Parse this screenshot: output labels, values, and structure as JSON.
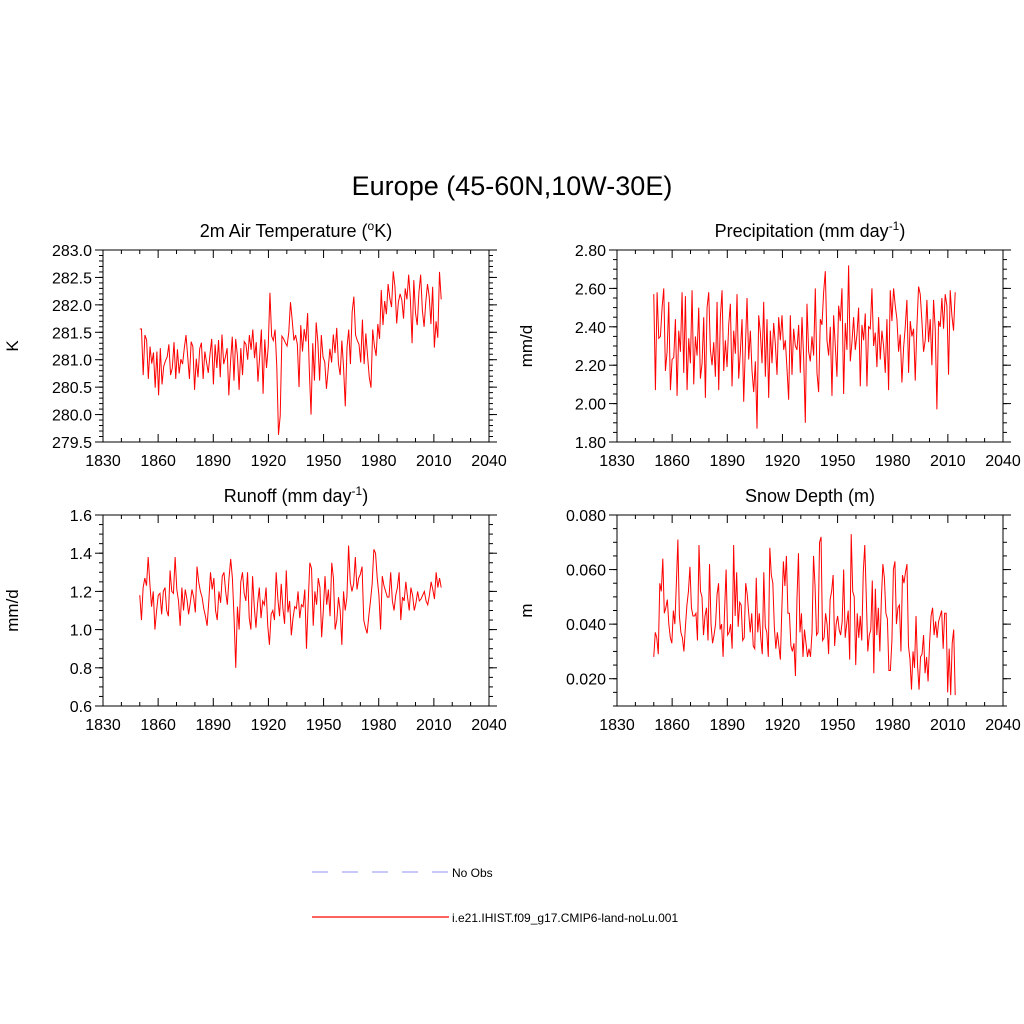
{
  "figure_title": "Europe (45-60N,10W-30E)",
  "legend": [
    {
      "label": "No Obs",
      "color": "#a9a9f5",
      "dash": true
    },
    {
      "label": "i.e21.IHIST.f09_g17.CMIP6-land-noLu.001",
      "color": "#ff0000",
      "dash": false
    }
  ],
  "chart_data": [
    {
      "type": "line",
      "title": "2m Air Temperature (",
      "title_sup": "o",
      "title_after": "K)",
      "ylabel": "K",
      "xlim": [
        1830,
        2040
      ],
      "ylim": [
        279.5,
        283.0
      ],
      "xticks": [
        1830,
        1860,
        1890,
        1920,
        1950,
        1980,
        2010,
        2040
      ],
      "xtick_labels": [
        "1830",
        "1860",
        "1890",
        "1920",
        "1950",
        "1980",
        "2010",
        "2040"
      ],
      "yticks": [
        279.5,
        280.0,
        280.5,
        281.0,
        281.5,
        282.0,
        282.5,
        283.0
      ],
      "ytick_labels": [
        "279.5",
        "280.0",
        "280.5",
        "281.0",
        "281.5",
        "282.0",
        "282.5",
        "283.0"
      ],
      "yminor_step": 0.1,
      "x_start": 1850,
      "color": "#ff0000",
      "values": [
        281.56,
        281.56,
        280.72,
        281.45,
        281.36,
        280.65,
        281.24,
        280.93,
        281.13,
        280.49,
        281.15,
        280.35,
        281.21,
        280.55,
        280.88,
        280.98,
        281.05,
        281.28,
        280.72,
        280.85,
        281.32,
        280.65,
        281.19,
        280.75,
        281.01,
        280.92,
        281.21,
        281.45,
        281.05,
        280.65,
        281.33,
        281.24,
        280.45,
        281.02,
        280.68,
        281.2,
        281.31,
        280.65,
        281.15,
        280.95,
        280.76,
        281.1,
        281.38,
        280.55,
        281.28,
        280.85,
        281.36,
        280.68,
        281.46,
        280.92,
        281.05,
        281.21,
        280.35,
        280.96,
        281.42,
        280.62,
        281.38,
        281.08,
        280.45,
        281.21,
        280.72,
        281.33,
        281.28,
        281.0,
        281.45,
        281.18,
        281.55,
        281.03,
        281.32,
        280.6,
        281.06,
        281.55,
        280.38,
        281.37,
        280.85,
        281.23,
        282.22,
        281.43,
        281.35,
        281.55,
        280.88,
        279.63,
        279.98,
        281.43,
        281.38,
        281.31,
        281.25,
        281.5,
        282.05,
        281.72,
        281.35,
        281.45,
        281.28,
        280.5,
        281.63,
        281.15,
        281.56,
        281.33,
        281.85,
        280.8,
        280.0,
        281.3,
        280.62,
        281.68,
        281.32,
        280.62,
        281.45,
        281.05,
        280.96,
        280.47,
        280.82,
        281.2,
        280.95,
        281.46,
        281.12,
        281.58,
        280.93,
        280.72,
        281.35,
        280.85,
        280.15,
        281.23,
        281.55,
        280.92,
        281.87,
        282.15,
        281.45,
        281.35,
        281.28,
        280.95,
        281.73,
        280.92,
        281.48,
        281.07,
        280.68,
        280.49,
        281.55,
        281.25,
        281.07,
        281.65,
        281.38,
        282.27,
        281.63,
        282.07,
        281.83,
        282.38,
        282.12,
        281.96,
        282.61,
        282.33,
        281.66,
        282.05,
        282.2,
        282.09,
        281.75,
        282.3,
        282.1,
        282.55,
        282.1,
        281.3,
        282.45,
        281.85,
        281.63,
        282.23,
        282.55,
        281.9,
        281.6,
        282.05,
        282.38,
        282.15,
        281.65,
        282.33,
        281.22,
        281.7,
        281.4,
        282.6,
        282.1
      ]
    },
    {
      "type": "line",
      "title": "Precipitation (mm day",
      "title_sup": "-1",
      "title_after": ")",
      "ylabel": "mm/d",
      "xlim": [
        1830,
        2040
      ],
      "ylim": [
        1.8,
        2.8
      ],
      "xticks": [
        1830,
        1860,
        1890,
        1920,
        1950,
        1980,
        2010,
        2040
      ],
      "xtick_labels": [
        "1830",
        "1860",
        "1890",
        "1920",
        "1950",
        "1980",
        "2010",
        "2040"
      ],
      "yticks": [
        1.8,
        2.0,
        2.2,
        2.4,
        2.6,
        2.8
      ],
      "ytick_labels": [
        "1.80",
        "2.00",
        "2.20",
        "2.40",
        "2.60",
        "2.80"
      ],
      "yminor_step": 0.05,
      "x_start": 1850,
      "color": "#ff0000",
      "values": [
        2.57,
        2.07,
        2.58,
        2.34,
        2.35,
        2.5,
        2.6,
        2.17,
        2.27,
        2.53,
        2.07,
        2.23,
        2.24,
        2.44,
        2.04,
        2.38,
        2.27,
        2.58,
        2.16,
        2.56,
        2.07,
        2.34,
        2.21,
        2.59,
        2.1,
        2.35,
        2.25,
        2.5,
        2.13,
        2.21,
        2.45,
        2.03,
        2.5,
        2.58,
        2.28,
        2.2,
        2.32,
        2.14,
        2.53,
        2.07,
        2.45,
        2.59,
        2.17,
        2.33,
        2.19,
        2.41,
        2.52,
        2.09,
        2.38,
        2.26,
        2.57,
        2.13,
        2.27,
        2.44,
        2.01,
        2.29,
        2.55,
        2.23,
        2.38,
        2.17,
        2.06,
        2.22,
        1.87,
        2.46,
        2.37,
        2.21,
        2.53,
        2.14,
        2.44,
        2.03,
        2.38,
        2.21,
        2.42,
        2.31,
        2.15,
        2.45,
        2.33,
        2.46,
        2.28,
        2.33,
        2.18,
        2.02,
        2.46,
        2.15,
        2.39,
        2.3,
        2.28,
        2.41,
        2.16,
        2.45,
        2.24,
        1.9,
        2.52,
        2.27,
        2.22,
        2.35,
        2.25,
        2.6,
        2.16,
        2.06,
        2.44,
        2.41,
        2.58,
        2.69,
        2.33,
        2.25,
        2.4,
        2.04,
        2.46,
        2.3,
        2.14,
        2.51,
        2.43,
        2.6,
        2.05,
        2.42,
        2.28,
        2.72,
        2.22,
        2.32,
        2.45,
        2.28,
        2.36,
        2.5,
        2.09,
        2.41,
        2.33,
        2.47,
        2.09,
        2.4,
        2.39,
        2.6,
        2.3,
        2.37,
        2.19,
        2.45,
        2.23,
        2.38,
        2.3,
        2.16,
        2.44,
        2.07,
        2.59,
        2.43,
        2.6,
        2.51,
        2.44,
        2.27,
        2.36,
        2.11,
        2.29,
        2.4,
        2.54,
        2.16,
        2.43,
        2.35,
        2.39,
        2.12,
        2.4,
        2.61,
        2.57,
        2.43,
        2.27,
        2.33,
        2.54,
        2.32,
        2.44,
        2.2,
        2.54,
        2.39,
        1.97,
        2.43,
        2.4,
        2.55,
        2.39,
        2.57,
        2.51,
        2.15,
        2.59,
        2.46,
        2.38,
        2.58
      ]
    },
    {
      "type": "line",
      "title": "Runoff (mm day",
      "title_sup": "-1",
      "title_after": ")",
      "ylabel": "mm/d",
      "xlim": [
        1830,
        2040
      ],
      "ylim": [
        0.6,
        1.6
      ],
      "xticks": [
        1830,
        1860,
        1890,
        1920,
        1950,
        1980,
        2010,
        2040
      ],
      "xtick_labels": [
        "1830",
        "1860",
        "1890",
        "1920",
        "1950",
        "1980",
        "2010",
        "2040"
      ],
      "yticks": [
        0.6,
        0.8,
        1.0,
        1.2,
        1.4,
        1.6
      ],
      "ytick_labels": [
        "0.6",
        "0.8",
        "1.0",
        "1.2",
        "1.4",
        "1.6"
      ],
      "yminor_step": 0.05,
      "x_start": 1850,
      "color": "#ff0000",
      "values": [
        1.18,
        1.05,
        1.22,
        1.27,
        1.23,
        1.38,
        1.24,
        1.12,
        1.2,
        1.0,
        1.1,
        1.18,
        1.19,
        1.08,
        1.2,
        1.22,
        1.1,
        1.07,
        1.31,
        1.2,
        1.19,
        1.38,
        1.21,
        1.15,
        1.02,
        1.22,
        1.1,
        1.21,
        1.16,
        1.08,
        1.14,
        1.21,
        1.17,
        1.09,
        1.33,
        1.25,
        1.2,
        1.17,
        1.11,
        1.07,
        1.02,
        1.15,
        1.3,
        1.21,
        1.27,
        1.1,
        1.05,
        1.2,
        1.14,
        1.28,
        1.3,
        1.2,
        1.13,
        1.27,
        1.37,
        1.27,
        1.06,
        0.8,
        1.12,
        1.0,
        1.25,
        1.3,
        1.19,
        1.15,
        1.3,
        1.06,
        1.0,
        1.28,
        1.12,
        1.01,
        1.14,
        1.22,
        1.06,
        1.15,
        1.13,
        1.22,
        1.02,
        0.92,
        1.08,
        1.1,
        1.05,
        1.3,
        1.16,
        1.07,
        1.24,
        1.11,
        1.03,
        1.31,
        1.09,
        1.15,
        0.97,
        1.06,
        1.12,
        1.11,
        1.2,
        1.06,
        1.13,
        1.12,
        1.21,
        0.9,
        1.14,
        1.35,
        1.32,
        1.02,
        1.2,
        1.13,
        1.27,
        1.22,
        0.96,
        1.1,
        1.28,
        1.13,
        1.21,
        1.07,
        1.35,
        1.27,
        1.0,
        1.05,
        1.17,
        1.1,
        0.92,
        1.2,
        1.1,
        1.17,
        1.44,
        1.25,
        1.2,
        1.24,
        1.38,
        1.21,
        1.27,
        1.29,
        1.33,
        1.05,
        1.01,
        0.98,
        1.07,
        1.15,
        1.24,
        1.42,
        1.4,
        1.27,
        1.18,
        1.0,
        1.28,
        1.23,
        1.2,
        1.17,
        1.17,
        1.3,
        1.15,
        1.1,
        1.18,
        1.22,
        1.3,
        1.05,
        1.17,
        1.15,
        1.25,
        1.17,
        1.1,
        1.22,
        1.18,
        1.1,
        1.14,
        1.2,
        1.15,
        1.16,
        1.18,
        1.2,
        1.15,
        1.13,
        1.18,
        1.25,
        1.21,
        1.16,
        1.3,
        1.22,
        1.27,
        1.22
      ]
    },
    {
      "type": "line",
      "title": "Snow Depth (m)",
      "title_sup": "",
      "title_after": "",
      "ylabel": "m",
      "xlim": [
        1830,
        2040
      ],
      "ylim": [
        0.01,
        0.08
      ],
      "xticks": [
        1830,
        1860,
        1890,
        1920,
        1950,
        1980,
        2010,
        2040
      ],
      "xtick_labels": [
        "1830",
        "1860",
        "1890",
        "1920",
        "1950",
        "1980",
        "2010",
        "2040"
      ],
      "yticks": [
        0.02,
        0.04,
        0.06,
        0.08
      ],
      "ytick_labels": [
        "0.020",
        "0.040",
        "0.060",
        "0.080"
      ],
      "yminor_step": 0.005,
      "x_start": 1850,
      "color": "#ff0000",
      "values": [
        0.028,
        0.037,
        0.035,
        0.029,
        0.055,
        0.052,
        0.064,
        0.044,
        0.046,
        0.049,
        0.04,
        0.035,
        0.033,
        0.045,
        0.04,
        0.055,
        0.071,
        0.043,
        0.037,
        0.035,
        0.03,
        0.039,
        0.047,
        0.052,
        0.061,
        0.046,
        0.043,
        0.043,
        0.044,
        0.034,
        0.069,
        0.052,
        0.05,
        0.036,
        0.043,
        0.046,
        0.034,
        0.062,
        0.04,
        0.033,
        0.036,
        0.04,
        0.051,
        0.055,
        0.038,
        0.04,
        0.028,
        0.045,
        0.06,
        0.036,
        0.037,
        0.04,
        0.031,
        0.069,
        0.043,
        0.059,
        0.039,
        0.048,
        0.047,
        0.034,
        0.035,
        0.055,
        0.051,
        0.044,
        0.037,
        0.044,
        0.032,
        0.031,
        0.057,
        0.037,
        0.044,
        0.035,
        0.029,
        0.059,
        0.039,
        0.037,
        0.028,
        0.068,
        0.058,
        0.055,
        0.039,
        0.031,
        0.037,
        0.032,
        0.027,
        0.046,
        0.063,
        0.054,
        0.065,
        0.044,
        0.044,
        0.032,
        0.03,
        0.033,
        0.021,
        0.049,
        0.066,
        0.037,
        0.044,
        0.028,
        0.038,
        0.033,
        0.028,
        0.031,
        0.028,
        0.037,
        0.065,
        0.054,
        0.036,
        0.037,
        0.07,
        0.072,
        0.034,
        0.035,
        0.044,
        0.04,
        0.029,
        0.049,
        0.052,
        0.058,
        0.032,
        0.04,
        0.043,
        0.038,
        0.036,
        0.041,
        0.06,
        0.035,
        0.04,
        0.045,
        0.027,
        0.073,
        0.052,
        0.05,
        0.025,
        0.044,
        0.035,
        0.043,
        0.034,
        0.059,
        0.069,
        0.05,
        0.03,
        0.036,
        0.038,
        0.056,
        0.022,
        0.053,
        0.036,
        0.046,
        0.03,
        0.049,
        0.062,
        0.057,
        0.044,
        0.042,
        0.023,
        0.023,
        0.034,
        0.06,
        0.063,
        0.04,
        0.046,
        0.047,
        0.03,
        0.058,
        0.055,
        0.059,
        0.062,
        0.032,
        0.027,
        0.016,
        0.03,
        0.024,
        0.043,
        0.025,
        0.016,
        0.028,
        0.029,
        0.036,
        0.022,
        0.028,
        0.019,
        0.033,
        0.043,
        0.046,
        0.036,
        0.041,
        0.035,
        0.041,
        0.043,
        0.045,
        0.031,
        0.044,
        0.044,
        0.015,
        0.031,
        0.014,
        0.033,
        0.038,
        0.014
      ]
    }
  ]
}
